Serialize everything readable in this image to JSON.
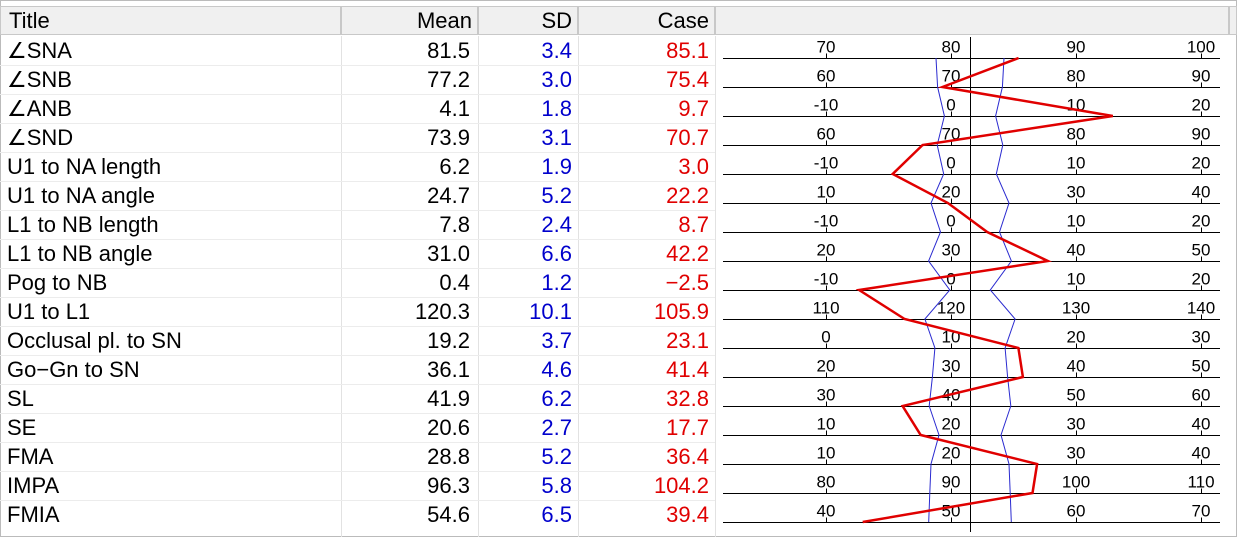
{
  "header": {
    "title": "Title",
    "mean": "Mean",
    "sd": "SD",
    "case": "Case"
  },
  "colors": {
    "mean_line": "#2a2ad0",
    "case_line": "#e00000",
    "sd_text": "#0000cc",
    "case_text": "#e00000"
  },
  "chart_data": {
    "type": "line",
    "rows": [
      {
        "title": "∠SNA",
        "mean": "81.5",
        "sd": "3.4",
        "case": "85.1",
        "ticks": [
          "70",
          "80",
          "90",
          "100"
        ]
      },
      {
        "title": "∠SNB",
        "mean": "77.2",
        "sd": "3.0",
        "case": "75.4",
        "ticks": [
          "60",
          "70",
          "80",
          "90"
        ]
      },
      {
        "title": "∠ANB",
        "mean": "4.1",
        "sd": "1.8",
        "case": "9.7",
        "ticks": [
          "-10",
          "0",
          "10",
          "20"
        ]
      },
      {
        "title": "∠SND",
        "mean": "73.9",
        "sd": "3.1",
        "case": "70.7",
        "ticks": [
          "60",
          "70",
          "80",
          "90"
        ]
      },
      {
        "title": "U1 to NA length",
        "mean": "6.2",
        "sd": "1.9",
        "case": "3.0",
        "ticks": [
          "-10",
          "0",
          "10",
          "20"
        ]
      },
      {
        "title": "U1 to NA angle",
        "mean": "24.7",
        "sd": "5.2",
        "case": "22.2",
        "ticks": [
          "10",
          "20",
          "30",
          "40"
        ]
      },
      {
        "title": "L1 to NB length",
        "mean": "7.8",
        "sd": "2.4",
        "case": "8.7",
        "ticks": [
          "-10",
          "0",
          "10",
          "20"
        ]
      },
      {
        "title": "L1 to NB angle",
        "mean": "31.0",
        "sd": "6.6",
        "case": "42.2",
        "ticks": [
          "20",
          "30",
          "40",
          "50"
        ]
      },
      {
        "title": "Pog to NB",
        "mean": "0.4",
        "sd": "1.2",
        "case": "−2.5",
        "ticks": [
          "-10",
          "0",
          "10",
          "20"
        ]
      },
      {
        "title": "U1 to L1",
        "mean": "120.3",
        "sd": "10.1",
        "case": "105.9",
        "ticks": [
          "110",
          "120",
          "130",
          "140"
        ]
      },
      {
        "title": "Occlusal pl. to SN",
        "mean": "19.2",
        "sd": "3.7",
        "case": "23.1",
        "ticks": [
          "0",
          "10",
          "20",
          "30"
        ]
      },
      {
        "title": "Go−Gn to SN",
        "mean": "36.1",
        "sd": "4.6",
        "case": "41.4",
        "ticks": [
          "20",
          "30",
          "40",
          "50"
        ]
      },
      {
        "title": "SL",
        "mean": "41.9",
        "sd": "6.2",
        "case": "32.8",
        "ticks": [
          "30",
          "40",
          "50",
          "60"
        ]
      },
      {
        "title": "SE",
        "mean": "20.6",
        "sd": "2.7",
        "case": "17.7",
        "ticks": [
          "10",
          "20",
          "30",
          "40"
        ]
      },
      {
        "title": "FMA",
        "mean": "28.8",
        "sd": "5.2",
        "case": "36.4",
        "ticks": [
          "10",
          "20",
          "30",
          "40"
        ]
      },
      {
        "title": "IMPA",
        "mean": "96.3",
        "sd": "5.8",
        "case": "104.2",
        "ticks": [
          "80",
          "90",
          "100",
          "110"
        ]
      },
      {
        "title": "FMIA",
        "mean": "54.6",
        "sd": "6.5",
        "case": "39.4",
        "ticks": [
          "40",
          "50",
          "60",
          "70"
        ]
      }
    ]
  }
}
